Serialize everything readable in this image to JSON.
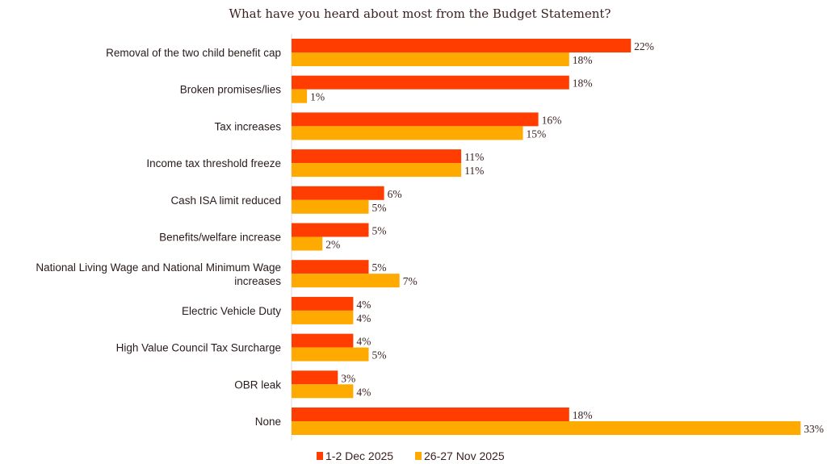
{
  "chart_data": {
    "type": "bar",
    "orientation": "horizontal",
    "title": "What have you heard about most from the Budget Statement?",
    "categories": [
      "Removal of the two child benefit cap",
      "Broken promises/lies",
      "Tax increases",
      "Income tax threshold freeze",
      "Cash ISA limit reduced",
      "Benefits/welfare increase",
      [
        "National Living Wage and National Minimum Wage",
        "increases"
      ],
      "Electric Vehicle Duty",
      "High Value Council Tax Surcharge",
      "OBR leak",
      "None"
    ],
    "series": [
      {
        "name": "1-2 Dec 2025",
        "color": "#FF3D00",
        "values": [
          22,
          18,
          16,
          11,
          6,
          5,
          5,
          4,
          4,
          3,
          18
        ]
      },
      {
        "name": "26-27 Nov 2025",
        "color": "#FFAA00",
        "values": [
          18,
          1,
          15,
          11,
          5,
          2,
          7,
          4,
          5,
          4,
          33
        ]
      }
    ],
    "value_suffix": "%",
    "xlabel": "",
    "ylabel": "",
    "xlim": [
      0,
      34
    ],
    "grid": false,
    "legend": "bottom"
  }
}
